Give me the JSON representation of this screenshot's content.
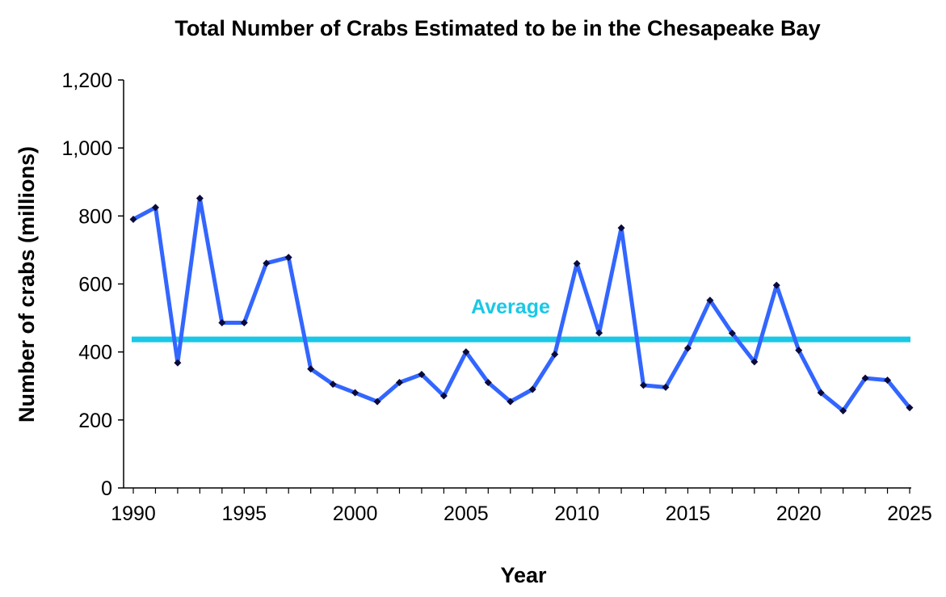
{
  "chart_data": {
    "type": "line",
    "title": "Total Number of Crabs Estimated to be in the Chesapeake Bay",
    "xlabel": "Year",
    "ylabel": "Number of crabs (millions)",
    "xlim": [
      1990,
      2025
    ],
    "ylim": [
      0,
      1200
    ],
    "x_ticks": [
      1990,
      1995,
      2000,
      2005,
      2010,
      2015,
      2020,
      2025
    ],
    "y_ticks": [
      0,
      200,
      400,
      600,
      800,
      1000,
      1200
    ],
    "y_tick_labels": [
      "0",
      "200",
      "400",
      "600",
      "800",
      "1,000",
      "1,200"
    ],
    "grid": false,
    "series": [
      {
        "color": "#3366ff",
        "marker_color": "#0a0a3c",
        "x": [
          1990,
          1991,
          1992,
          1993,
          1994,
          1995,
          1996,
          1997,
          1998,
          1999,
          2000,
          2001,
          2002,
          2003,
          2004,
          2005,
          2006,
          2007,
          2008,
          2009,
          2010,
          2011,
          2012,
          2013,
          2014,
          2015,
          2016,
          2017,
          2018,
          2019,
          2020,
          2021,
          2022,
          2023,
          2024,
          2025
        ],
        "values": [
          790,
          825,
          368,
          852,
          486,
          486,
          661,
          678,
          350,
          305,
          280,
          254,
          310,
          334,
          271,
          400,
          310,
          254,
          290,
          393,
          660,
          456,
          765,
          302,
          296,
          411,
          552,
          455,
          371,
          596,
          405,
          280,
          227,
          323,
          317,
          236
        ]
      }
    ],
    "average": {
      "label": "Average",
      "value": 437,
      "color": "#19c8e6"
    }
  }
}
